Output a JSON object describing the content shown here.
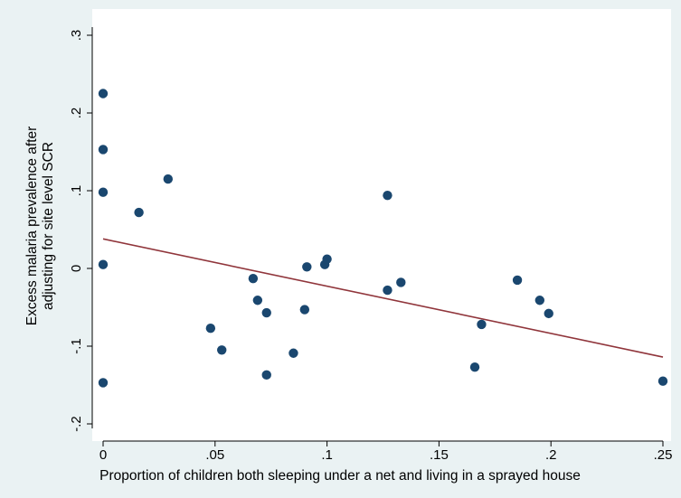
{
  "chart_data": {
    "type": "scatter",
    "title": "",
    "xlabel": "Proportion of children both sleeping under a net and living in a sprayed house",
    "ylabel_lines": [
      "Excess malaria prevalence after",
      "adjusting for site level SCR"
    ],
    "xlim": [
      -0.005,
      0.255
    ],
    "ylim": [
      -0.205,
      0.305
    ],
    "x_ticks": [
      0,
      0.05,
      0.1,
      0.15,
      0.2,
      0.25
    ],
    "x_tick_labels": [
      "0",
      ".05",
      ".1",
      ".15",
      ".2",
      ".25"
    ],
    "y_ticks": [
      -0.2,
      -0.1,
      0,
      0.1,
      0.2,
      0.3
    ],
    "y_tick_labels": [
      "-.2",
      "-.1",
      "0",
      ".1",
      ".2",
      ".3"
    ],
    "grid": false,
    "legend": "none",
    "colors": {
      "plot_background": "#ffffff",
      "outer_background": "#eaf2f3",
      "points": "#1a476f",
      "fit_line": "#90353b"
    },
    "points": [
      {
        "x": 0.0,
        "y": 0.225
      },
      {
        "x": 0.0,
        "y": 0.153
      },
      {
        "x": 0.0,
        "y": 0.098
      },
      {
        "x": 0.0,
        "y": 0.005
      },
      {
        "x": 0.0,
        "y": -0.147
      },
      {
        "x": 0.016,
        "y": 0.072
      },
      {
        "x": 0.029,
        "y": 0.115
      },
      {
        "x": 0.048,
        "y": -0.077
      },
      {
        "x": 0.053,
        "y": -0.105
      },
      {
        "x": 0.067,
        "y": -0.013
      },
      {
        "x": 0.069,
        "y": -0.041
      },
      {
        "x": 0.073,
        "y": -0.057
      },
      {
        "x": 0.073,
        "y": -0.137
      },
      {
        "x": 0.085,
        "y": -0.109
      },
      {
        "x": 0.09,
        "y": -0.053
      },
      {
        "x": 0.091,
        "y": 0.002
      },
      {
        "x": 0.099,
        "y": 0.005
      },
      {
        "x": 0.1,
        "y": 0.012
      },
      {
        "x": 0.127,
        "y": 0.094
      },
      {
        "x": 0.127,
        "y": -0.028
      },
      {
        "x": 0.133,
        "y": -0.018
      },
      {
        "x": 0.166,
        "y": -0.127
      },
      {
        "x": 0.169,
        "y": -0.072
      },
      {
        "x": 0.185,
        "y": -0.015
      },
      {
        "x": 0.195,
        "y": -0.041
      },
      {
        "x": 0.199,
        "y": -0.058
      },
      {
        "x": 0.25,
        "y": -0.145
      }
    ],
    "fit_line": {
      "x": [
        0.0,
        0.25
      ],
      "y": [
        0.038,
        -0.114
      ]
    }
  }
}
